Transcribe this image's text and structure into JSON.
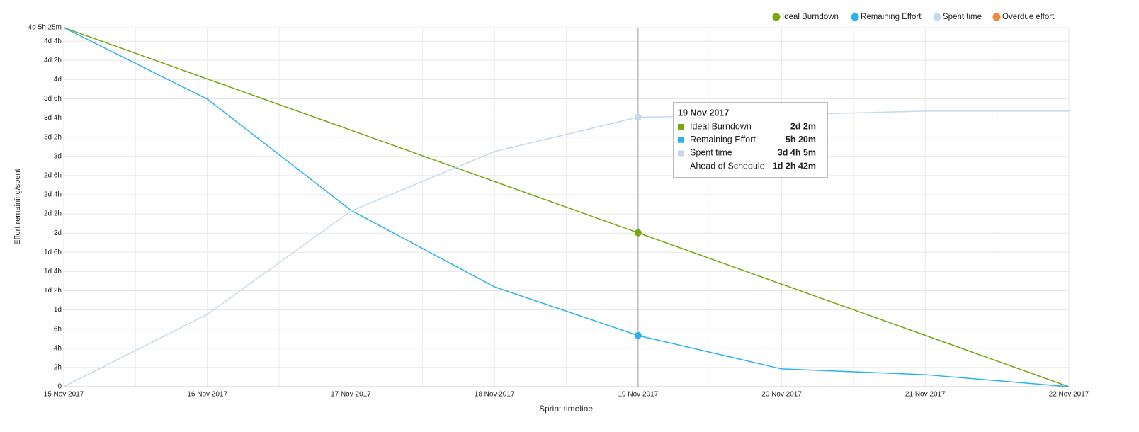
{
  "chart_data": {
    "type": "line",
    "x_label": "Sprint timeline",
    "y_label": "Effort remaining/spent",
    "categories": [
      "15 Nov 2017",
      "16 Nov 2017",
      "17 Nov 2017",
      "18 Nov 2017",
      "19 Nov 2017",
      "20 Nov 2017",
      "21 Nov 2017",
      "22 Nov 2017"
    ],
    "series": [
      {
        "name": "Ideal Burndown",
        "color": "#7aa60f",
        "values": [
          2245,
          1924,
          1604,
          1283,
          962,
          641,
          321,
          0
        ]
      },
      {
        "name": "Remaining Effort",
        "color": "#27b2f0",
        "values": [
          2245,
          1798,
          1103,
          624,
          320,
          111,
          75,
          0
        ]
      },
      {
        "name": "Spent time",
        "color": "#c5d9ec",
        "values": [
          0,
          452,
          1098,
          1470,
          1685,
          1700,
          1723,
          1723
        ]
      },
      {
        "name": "Overdue effort",
        "color": "#f5873a",
        "values": [
          null,
          null,
          null,
          null,
          null,
          null,
          null,
          null
        ]
      }
    ],
    "ylim": [
      0,
      2245
    ],
    "yticks": [
      0,
      {
        "value": 120,
        "label": "2h"
      },
      {
        "value": 240,
        "label": "4h"
      },
      {
        "value": 360,
        "label": "6h"
      },
      {
        "value": 480,
        "label": "1d"
      },
      {
        "value": 600,
        "label": "1d 2h"
      },
      {
        "value": 720,
        "label": "1d 4h"
      },
      {
        "value": 840,
        "label": "1d 6h"
      },
      {
        "value": 960,
        "label": "2d"
      },
      {
        "value": 1080,
        "label": "2d 2h"
      },
      {
        "value": 1200,
        "label": "2d 4h"
      },
      {
        "value": 1320,
        "label": "2d 6h"
      },
      {
        "value": 1440,
        "label": "3d"
      },
      {
        "value": 1560,
        "label": "3d 2h"
      },
      {
        "value": 1680,
        "label": "3d 4h"
      },
      {
        "value": 1800,
        "label": "3d 6h"
      },
      {
        "value": 1920,
        "label": "4d"
      },
      {
        "value": 2040,
        "label": "4d 2h"
      },
      {
        "value": 2160,
        "label": "4d 4h"
      },
      {
        "value": 2245,
        "label": "4d 5h 25m"
      }
    ],
    "grid": true,
    "legend": "top-right",
    "highlight_index": 4,
    "tooltip": {
      "title": "19 Nov 2017",
      "rows": [
        {
          "name": "Ideal Burndown",
          "value": "2d 2m"
        },
        {
          "name": "Remaining Effort",
          "value": "5h 20m"
        },
        {
          "name": "Spent time",
          "value": "3d 4h 5m"
        },
        {
          "name": "Ahead of Schedule",
          "value": "1d 2h 42m"
        }
      ]
    }
  }
}
